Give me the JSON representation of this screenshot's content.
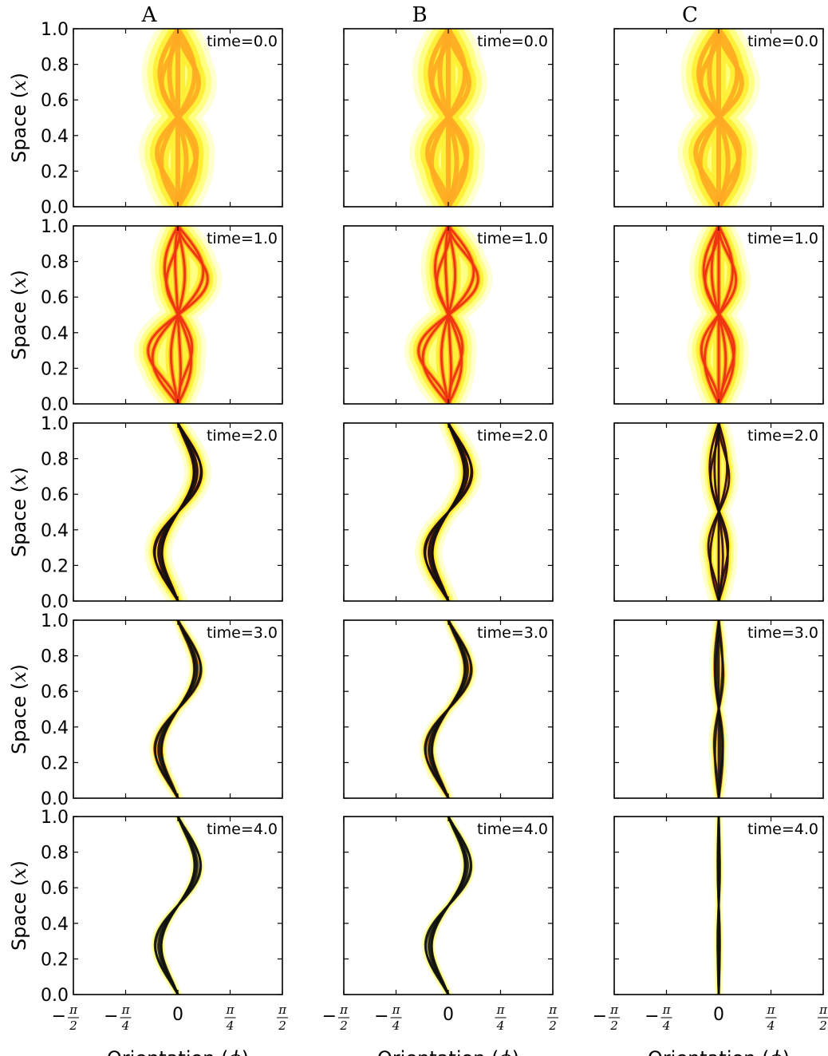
{
  "chart_data": {
    "type": "contour",
    "columns": [
      "A",
      "B",
      "C"
    ],
    "times": [
      "time=0.0",
      "time=1.0",
      "time=2.0",
      "time=3.0",
      "time=4.0"
    ],
    "ylabel": "Space (x)",
    "xlabel": "Orientation (ϕ)",
    "yticks": [
      "0.0",
      "0.2",
      "0.4",
      "0.6",
      "0.8",
      "1.0"
    ],
    "xticks": [
      "−π/2",
      "−π/4",
      "0",
      "π/4",
      "π/2"
    ],
    "xlim": [
      -1.5708,
      1.5708
    ],
    "ylim": [
      0,
      1
    ],
    "colormap": [
      "#ffffcc",
      "#ffff80",
      "#ffee33",
      "#ffaa22",
      "#ee3311",
      "#111111"
    ],
    "description_values": {
      "grid": false,
      "columns_x_shared": true,
      "rows_y_shared": true
    }
  },
  "labels": {
    "ylabel_prefix": "Space (",
    "ylabel_var": "x",
    "ylabel_suffix": ")",
    "xlabel_prefix": "Orientation (",
    "xlabel_var": "ϕ",
    "xlabel_suffix": ")"
  }
}
